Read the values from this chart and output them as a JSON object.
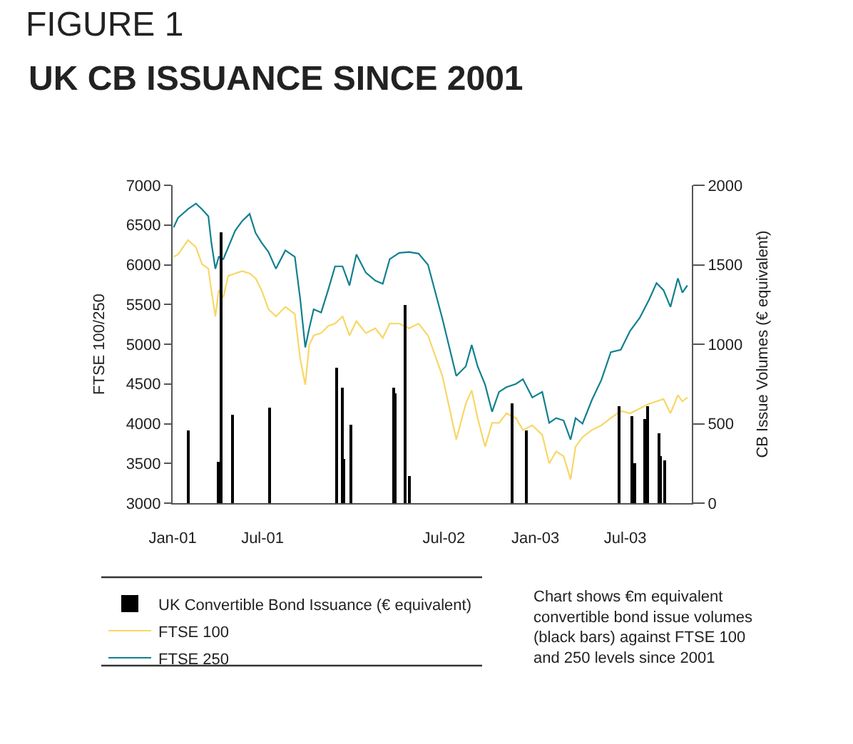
{
  "chart_data": {
    "type": "line",
    "title": "FIGURE 1",
    "subtitle": "UK CB ISSUANCE SINCE 2001",
    "ylabel": "FTSE 100/250",
    "y2label": "CB Issue Volumes (€ equivalent)",
    "xlim": [
      "2001-01-01",
      "2003-11-12"
    ],
    "xticks": [
      {
        "value": "2001-01-01",
        "label": "Jan-01"
      },
      {
        "value": "2001-07-01",
        "label": "Jul-01"
      },
      {
        "value": "2002-07-01",
        "label": "Jul-02"
      },
      {
        "value": "2003-01-01",
        "label": "Jan-03"
      },
      {
        "value": "2003-07-01",
        "label": "Jul-03"
      }
    ],
    "ylim": [
      3000,
      7000
    ],
    "yticks": [
      3000,
      3500,
      4000,
      4500,
      5000,
      5500,
      6000,
      6500,
      7000
    ],
    "y2lim": [
      0,
      2000
    ],
    "y2ticks": [
      0,
      500,
      1000,
      1500,
      2000
    ],
    "legend": "bottom",
    "annotations": [
      "Chart shows €m equivalent\nconvertible bond issue volumes\n(black bars) against FTSE 100\nand 250 levels since 2001"
    ],
    "series": [
      {
        "name": "UK Convertible Bond Issuance (€ equivalent)",
        "type": "bar",
        "axis": "y2",
        "color": "#000000",
        "x": [
          "2001-02-03",
          "2001-04-02",
          "2001-04-10",
          "2001-05-03",
          "2001-07-15",
          "2001-11-28",
          "2001-12-09",
          "2001-12-12",
          "2001-12-25",
          "2002-03-21",
          "2002-03-25",
          "2002-04-13",
          "2002-04-22",
          "2002-11-15",
          "2002-12-14",
          "2003-06-20",
          "2003-07-14",
          "2003-07-21",
          "2003-08-08",
          "2003-08-16",
          "2003-09-07",
          "2003-09-11",
          "2003-09-18"
        ],
        "values": [
          460,
          260,
          1700,
          560,
          600,
          850,
          730,
          280,
          490,
          730,
          690,
          1250,
          170,
          630,
          460,
          610,
          550,
          250,
          530,
          610,
          440,
          300,
          270
        ]
      },
      {
        "name": "FTSE 100",
        "color": "#f7d767",
        "x": [
          "2001-01-03",
          "2001-01-12",
          "2001-02-01",
          "2001-02-17",
          "2001-03-01",
          "2001-03-14",
          "2001-03-20",
          "2001-03-28",
          "2001-04-04",
          "2001-04-13",
          "2001-04-23",
          "2001-05-07",
          "2001-05-21",
          "2001-06-05",
          "2001-06-17",
          "2001-06-29",
          "2001-07-13",
          "2001-07-28",
          "2001-08-16",
          "2001-09-04",
          "2001-09-15",
          "2001-09-25",
          "2001-10-03",
          "2001-10-12",
          "2001-10-27",
          "2001-11-10",
          "2001-11-24",
          "2001-12-09",
          "2001-12-23",
          "2002-01-06",
          "2002-01-25",
          "2002-02-13",
          "2002-02-28",
          "2002-03-14",
          "2002-04-02",
          "2002-04-22",
          "2002-05-11",
          "2002-05-30",
          "2002-06-28",
          "2002-07-26",
          "2002-08-14",
          "2002-08-26",
          "2002-09-07",
          "2002-09-22",
          "2002-10-06",
          "2002-10-20",
          "2002-11-04",
          "2002-11-23",
          "2002-12-07",
          "2002-12-26",
          "2003-01-15",
          "2003-01-29",
          "2003-02-12",
          "2003-02-27",
          "2003-03-13",
          "2003-03-23",
          "2003-04-06",
          "2003-04-25",
          "2003-05-14",
          "2003-06-02",
          "2003-06-22",
          "2003-07-11",
          "2003-07-30",
          "2003-08-18",
          "2003-09-02",
          "2003-09-16",
          "2003-09-30",
          "2003-10-15",
          "2003-10-24",
          "2003-11-03"
        ],
        "values": [
          6100,
          6130,
          6310,
          6220,
          6010,
          5950,
          5680,
          5350,
          5680,
          5590,
          5860,
          5890,
          5920,
          5890,
          5830,
          5680,
          5440,
          5350,
          5470,
          5380,
          4810,
          4490,
          4990,
          5110,
          5140,
          5230,
          5260,
          5350,
          5110,
          5290,
          5140,
          5200,
          5080,
          5260,
          5260,
          5200,
          5260,
          5110,
          4600,
          3800,
          4250,
          4420,
          4070,
          3710,
          4010,
          4010,
          4130,
          4070,
          3920,
          3980,
          3860,
          3500,
          3650,
          3590,
          3300,
          3710,
          3830,
          3920,
          3980,
          4070,
          4160,
          4130,
          4190,
          4250,
          4280,
          4310,
          4130,
          4360,
          4280,
          4330
        ]
      },
      {
        "name": "FTSE 250",
        "color": "#11808f",
        "x": [
          "2001-01-03",
          "2001-01-12",
          "2001-02-01",
          "2001-02-17",
          "2001-03-01",
          "2001-03-14",
          "2001-03-20",
          "2001-03-28",
          "2001-04-04",
          "2001-04-13",
          "2001-04-23",
          "2001-05-07",
          "2001-05-21",
          "2001-06-05",
          "2001-06-17",
          "2001-06-29",
          "2001-07-13",
          "2001-07-28",
          "2001-08-16",
          "2001-09-04",
          "2001-09-15",
          "2001-09-25",
          "2001-10-03",
          "2001-10-12",
          "2001-10-27",
          "2001-11-10",
          "2001-11-24",
          "2001-12-09",
          "2001-12-23",
          "2002-01-06",
          "2002-01-25",
          "2002-02-13",
          "2002-02-28",
          "2002-03-14",
          "2002-04-02",
          "2002-04-22",
          "2002-05-11",
          "2002-05-30",
          "2002-06-28",
          "2002-07-26",
          "2002-08-14",
          "2002-08-26",
          "2002-09-07",
          "2002-09-22",
          "2002-10-06",
          "2002-10-20",
          "2002-11-04",
          "2002-11-23",
          "2002-12-07",
          "2002-12-26",
          "2003-01-15",
          "2003-01-29",
          "2003-02-12",
          "2003-02-27",
          "2003-03-13",
          "2003-03-23",
          "2003-04-06",
          "2003-04-25",
          "2003-05-14",
          "2003-06-02",
          "2003-06-22",
          "2003-07-11",
          "2003-07-30",
          "2003-08-18",
          "2003-09-02",
          "2003-09-16",
          "2003-09-30",
          "2003-10-15",
          "2003-10-24",
          "2003-11-03"
        ],
        "values": [
          6470,
          6590,
          6700,
          6770,
          6700,
          6610,
          6280,
          5950,
          6100,
          6070,
          6220,
          6430,
          6550,
          6640,
          6400,
          6280,
          6160,
          5950,
          6180,
          6100,
          5560,
          4960,
          5200,
          5440,
          5400,
          5680,
          5980,
          5980,
          5740,
          6130,
          5900,
          5800,
          5760,
          6070,
          6150,
          6160,
          6140,
          6000,
          5320,
          4600,
          4720,
          4990,
          4720,
          4490,
          4150,
          4400,
          4460,
          4500,
          4560,
          4330,
          4400,
          4010,
          4070,
          4040,
          3800,
          4070,
          4000,
          4300,
          4550,
          4900,
          4930,
          5170,
          5330,
          5560,
          5770,
          5680,
          5470,
          5830,
          5650,
          5740
        ]
      }
    ]
  }
}
